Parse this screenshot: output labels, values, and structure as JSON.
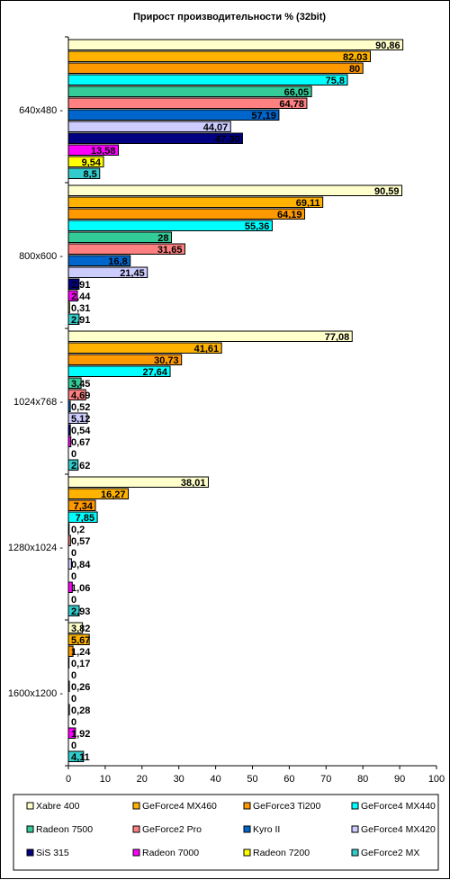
{
  "chart_data": {
    "type": "bar",
    "orientation": "horizontal",
    "title": "Прирост производительности % (32bit)",
    "xlim": [
      0,
      100
    ],
    "x_ticks": [
      "0",
      "10",
      "20",
      "30",
      "40",
      "50",
      "60",
      "70",
      "80",
      "90",
      "100"
    ],
    "grid": false,
    "legend_position": "bottom",
    "categories": [
      "640x480",
      "800x600",
      "1024x768",
      "1280x1024",
      "1600x1200"
    ],
    "series": [
      {
        "name": "Xabre 400",
        "color": "#ffffcc",
        "values": [
          90.86,
          90.59,
          77.08,
          38.01,
          3.82
        ],
        "labels": [
          "90,86",
          "90,59",
          "77,08",
          "38,01",
          "3,82"
        ]
      },
      {
        "name": "GeForce4 MX460",
        "color": "#ffb300",
        "values": [
          82.03,
          69.11,
          41.61,
          16.27,
          5.67
        ],
        "labels": [
          "82,03",
          "69,11",
          "41,61",
          "16,27",
          "5,67"
        ]
      },
      {
        "name": "GeForce3 Ti200",
        "color": "#ff9900",
        "values": [
          80,
          64.19,
          30.73,
          7.34,
          1.24
        ],
        "labels": [
          "80",
          "64,19",
          "30,73",
          "7,34",
          "1,24"
        ]
      },
      {
        "name": "GeForce4 MX440",
        "color": "#00ffff",
        "values": [
          75.8,
          55.36,
          27.64,
          7.85,
          0.17
        ],
        "labels": [
          "75,8",
          "55,36",
          "27,64",
          "7,85",
          "0,17"
        ]
      },
      {
        "name": "Radeon 7500",
        "color": "#33cc99",
        "values": [
          66.05,
          28,
          3.45,
          0.2,
          0
        ],
        "labels": [
          "66,05",
          "28",
          "3,45",
          "0,2",
          "0"
        ]
      },
      {
        "name": "GeForce2 Pro",
        "color": "#ff8080",
        "values": [
          64.78,
          31.65,
          4.69,
          0.57,
          0.26
        ],
        "labels": [
          "64,78",
          "31,65",
          "4,69",
          "0,57",
          "0,26"
        ]
      },
      {
        "name": "Kyro II",
        "color": "#0066cc",
        "values": [
          57.19,
          16.8,
          0.52,
          0,
          0
        ],
        "labels": [
          "57,19",
          "16,8",
          "0,52",
          "0",
          "0"
        ]
      },
      {
        "name": "GeForce4 MX420",
        "color": "#ccccff",
        "values": [
          44.07,
          21.45,
          5.12,
          0.84,
          0.28
        ],
        "labels": [
          "44,07",
          "21,45",
          "5,12",
          "0,84",
          "0,28"
        ]
      },
      {
        "name": "SiS 315",
        "color": "#000080",
        "values": [
          47.3,
          2.91,
          0.54,
          0,
          0
        ],
        "labels": [
          "47,30",
          "2,91",
          "0,54",
          "0",
          "0"
        ]
      },
      {
        "name": "Radeon 7000",
        "color": "#ff00ff",
        "values": [
          13.58,
          2.44,
          0.67,
          1.06,
          1.92
        ],
        "labels": [
          "13,58",
          "2,44",
          "0,67",
          "1,06",
          "1,92"
        ]
      },
      {
        "name": "Radeon 7200",
        "color": "#ffff00",
        "values": [
          9.54,
          0.31,
          0,
          0,
          0
        ],
        "labels": [
          "9,54",
          "0,31",
          "0",
          "0",
          "0"
        ]
      },
      {
        "name": "GeForce2 MX",
        "color": "#33cccc",
        "values": [
          8.5,
          2.91,
          2.62,
          2.93,
          4.11
        ],
        "labels": [
          "8,5",
          "2,91",
          "2,62",
          "2,93",
          "4,11"
        ]
      }
    ]
  }
}
